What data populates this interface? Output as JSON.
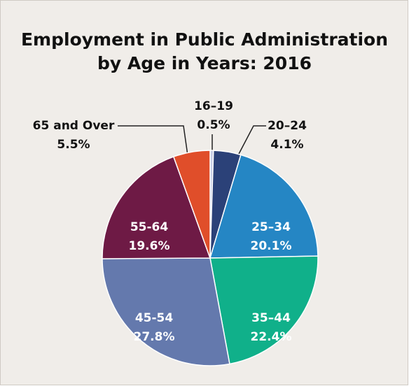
{
  "chart_data": {
    "type": "pie",
    "title": [
      "Employment in Public Administration",
      "by Age in Years: 2016"
    ],
    "categories": [
      "16–19",
      "20–24",
      "25–34",
      "35–44",
      "45-54",
      "55-64",
      "65 and Over"
    ],
    "values": [
      0.5,
      4.1,
      20.1,
      22.4,
      27.8,
      19.6,
      5.5
    ],
    "value_labels": [
      "0.5%",
      "4.1%",
      "20.1%",
      "22.4%",
      "27.8%",
      "19.6%",
      "5.5%"
    ],
    "colors": [
      "#c6cde6",
      "#2b4178",
      "#2586c4",
      "#10b08a",
      "#6479ad",
      "#6e1a45",
      "#e04e2a"
    ]
  }
}
